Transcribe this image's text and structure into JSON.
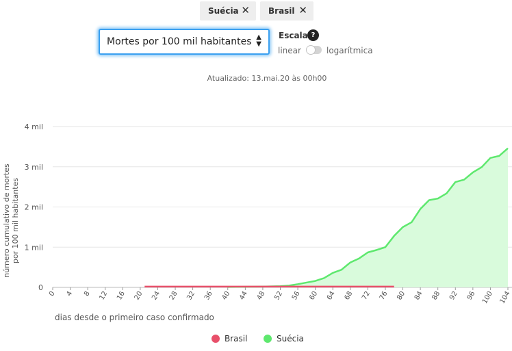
{
  "filters": {
    "chips": [
      {
        "label": "Suécia",
        "remove_icon": "close-icon"
      },
      {
        "label": "Brasil",
        "remove_icon": "close-icon"
      }
    ]
  },
  "metric_select": {
    "selected": "Mortes por 100 mil habitantes",
    "arrows": "▲▼"
  },
  "scale": {
    "title": "Escala",
    "help": "?",
    "linear_label": "linear",
    "log_label": "logarítmica",
    "log_enabled": false
  },
  "updated": "Atualizado: 13.mai.20 às 00h00",
  "chart_data": {
    "type": "area",
    "xlabel": "dias desde o primeiro caso confirmado",
    "ylabel": "número cumulativo de mortes por 100 mil habitantes",
    "xlim": [
      0,
      104
    ],
    "ylim": [
      0,
      4000
    ],
    "x_ticks": [
      0,
      4,
      8,
      12,
      16,
      20,
      24,
      28,
      32,
      36,
      40,
      44,
      48,
      52,
      56,
      60,
      64,
      68,
      72,
      76,
      80,
      84,
      88,
      92,
      96,
      100,
      104
    ],
    "y_ticks": [
      {
        "value": 0,
        "label": "0"
      },
      {
        "value": 1000,
        "label": "1 mil"
      },
      {
        "value": 2000,
        "label": "2 mil"
      },
      {
        "value": 3000,
        "label": "3 mil"
      },
      {
        "value": 4000,
        "label": "4 mil"
      }
    ],
    "grid": "horizontal",
    "legend_position": "bottom",
    "series": [
      {
        "name": "Brasil",
        "color": "#e8506a",
        "fill": false,
        "x": [
          21,
          30,
          40,
          50,
          60,
          70,
          78
        ],
        "y": [
          20,
          20,
          20,
          20,
          20,
          20,
          20
        ]
      },
      {
        "name": "Suécia",
        "color": "#5ee86e",
        "fill": "#d9fbdc",
        "x": [
          40,
          44,
          48,
          52,
          54,
          56,
          58,
          60,
          62,
          64,
          66,
          68,
          70,
          72,
          74,
          76,
          78,
          80,
          82,
          84,
          86,
          88,
          90,
          92,
          94,
          96,
          98,
          100,
          102,
          104
        ],
        "y": [
          10,
          15,
          20,
          30,
          45,
          80,
          120,
          160,
          230,
          360,
          440,
          620,
          720,
          870,
          930,
          1000,
          1280,
          1500,
          1620,
          1950,
          2170,
          2210,
          2340,
          2620,
          2680,
          2860,
          2990,
          3220,
          3270,
          3460
        ]
      }
    ]
  }
}
